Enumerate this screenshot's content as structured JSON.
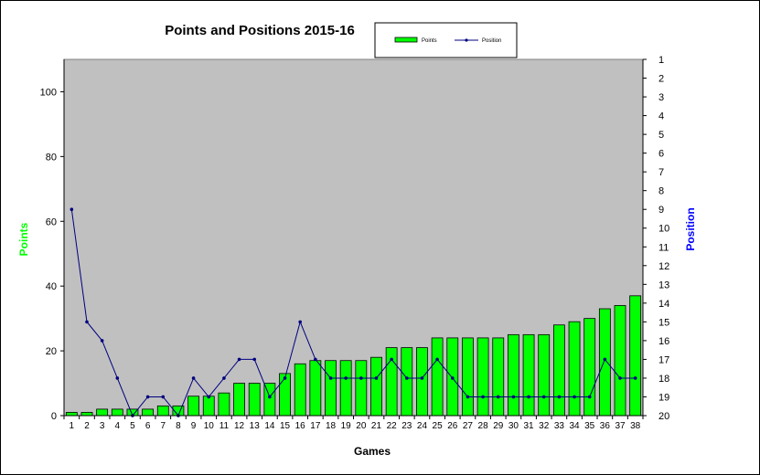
{
  "chart_data": {
    "type": "bar+line",
    "title": "Points and Positions 2015-16",
    "xlabel": "Games",
    "ylabel_left": "Points",
    "ylabel_right": "Position",
    "left_ticks": [
      "0",
      "20",
      "40",
      "60",
      "80",
      "100"
    ],
    "left_range": [
      0,
      110
    ],
    "right_ticks": [
      "1",
      "2",
      "3",
      "4",
      "5",
      "6",
      "7",
      "8",
      "9",
      "10",
      "11",
      "12",
      "13",
      "14",
      "15",
      "16",
      "17",
      "18",
      "19",
      "20"
    ],
    "right_range": [
      1,
      20
    ],
    "right_axis_inverted": true,
    "categories": [
      "1",
      "2",
      "3",
      "4",
      "5",
      "6",
      "7",
      "8",
      "9",
      "10",
      "11",
      "12",
      "13",
      "14",
      "15",
      "16",
      "17",
      "18",
      "19",
      "20",
      "21",
      "22",
      "23",
      "24",
      "25",
      "26",
      "27",
      "28",
      "29",
      "30",
      "31",
      "32",
      "33",
      "34",
      "35",
      "36",
      "37",
      "38"
    ],
    "series": [
      {
        "name": "Points",
        "kind": "bar",
        "axis": "left",
        "color": "#00ff00",
        "values": [
          1,
          1,
          2,
          2,
          2,
          2,
          3,
          3,
          6,
          6,
          7,
          10,
          10,
          10,
          13,
          16,
          17,
          17,
          17,
          17,
          18,
          21,
          21,
          21,
          24,
          24,
          24,
          24,
          24,
          25,
          25,
          25,
          28,
          29,
          30,
          33,
          34,
          37
        ]
      },
      {
        "name": "Position",
        "kind": "line",
        "axis": "right",
        "color": "#000080",
        "values": [
          9,
          15,
          16,
          18,
          20,
          19,
          19,
          20,
          18,
          19,
          18,
          17,
          17,
          19,
          18,
          15,
          17,
          18,
          18,
          18,
          18,
          17,
          18,
          18,
          17,
          18,
          19,
          19,
          19,
          19,
          19,
          19,
          19,
          19,
          19,
          17,
          18,
          18
        ]
      }
    ],
    "legend_position": "top-center",
    "plot_background": "#c0c0c0",
    "grid": false
  }
}
